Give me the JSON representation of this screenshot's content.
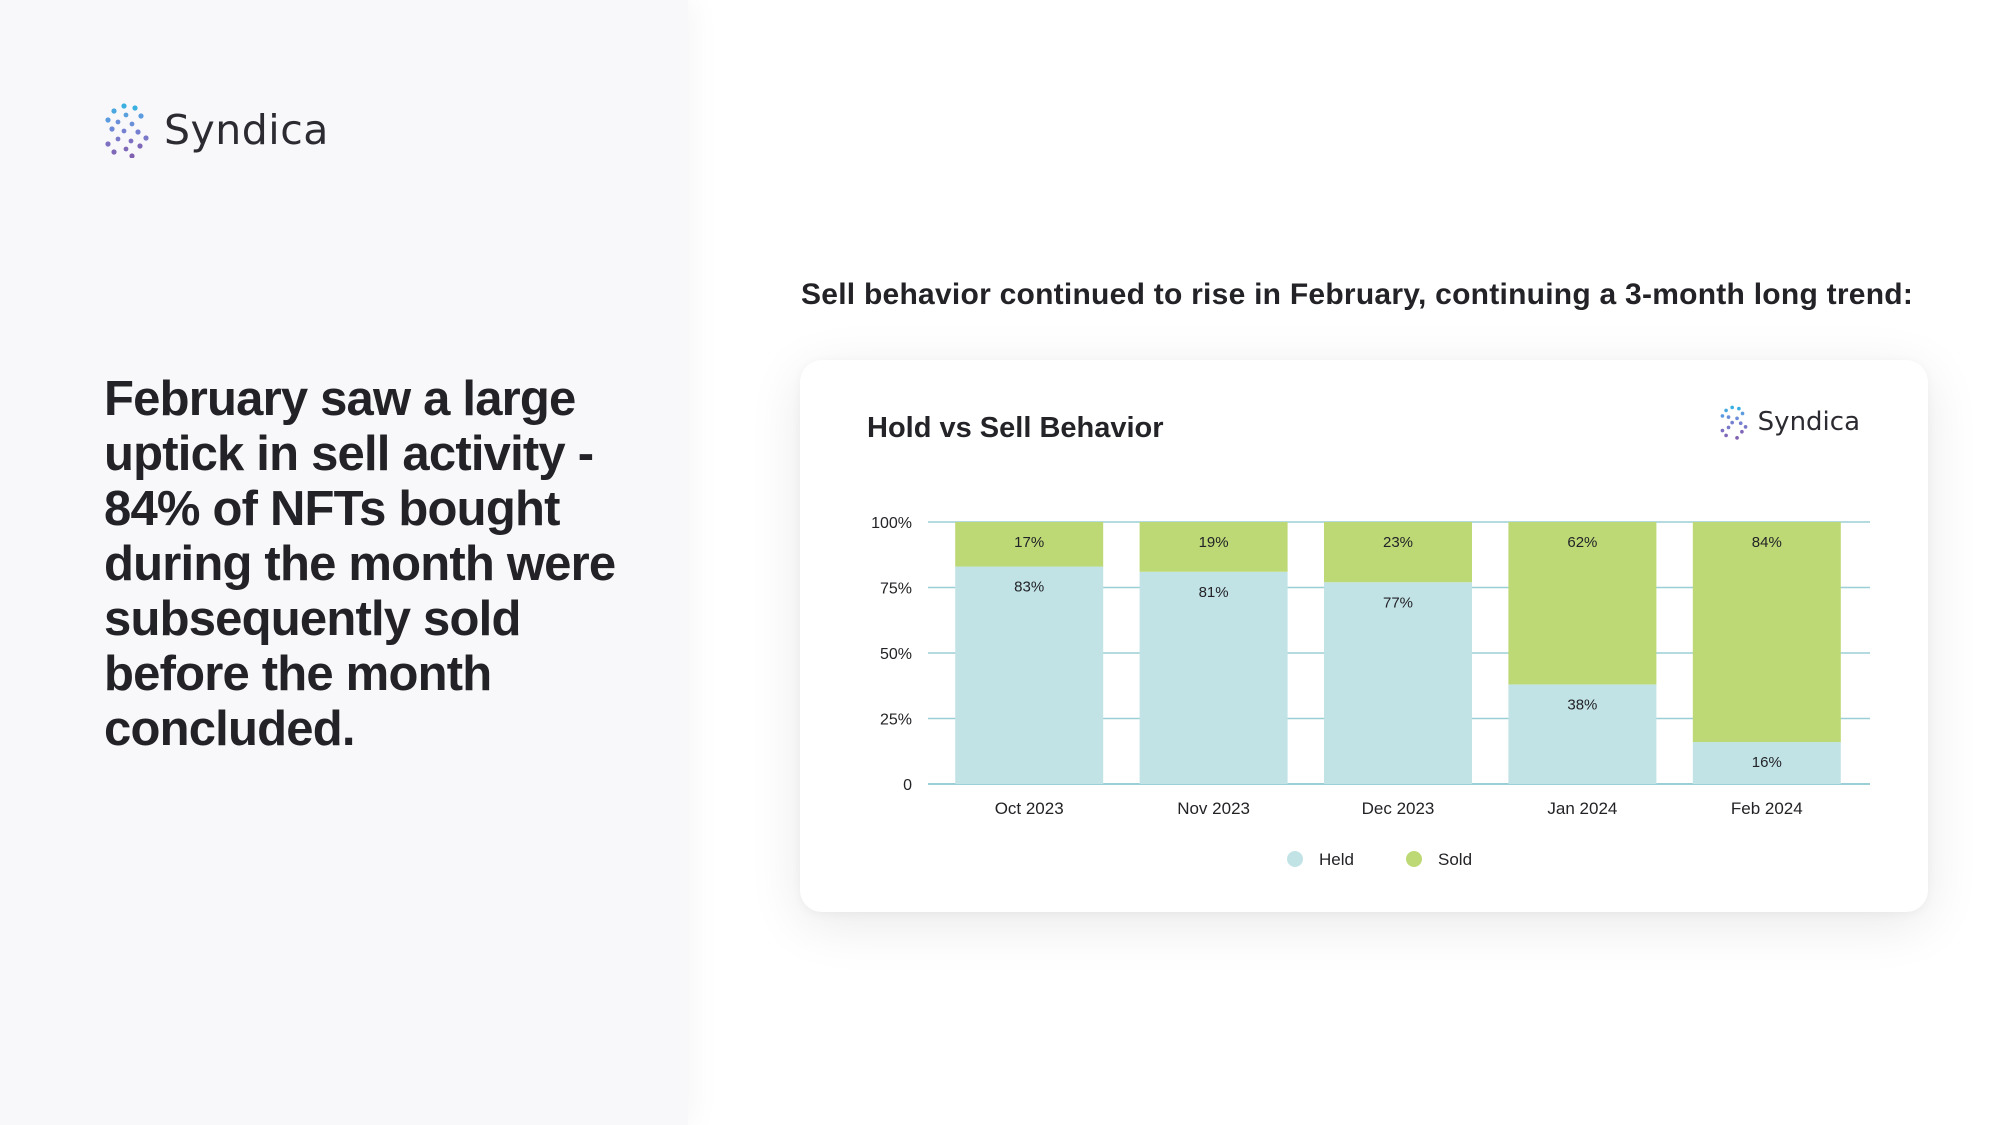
{
  "brand": {
    "name": "Syndica"
  },
  "headline": "February saw a large uptick in sell activity - 84% of NFTs bought during the month were subsequently sold before the month concluded.",
  "subtitle": "Sell behavior continued to rise in February, continuing a 3-month long trend:",
  "colors": {
    "held": "#c2e3e6",
    "sold": "#bdd975",
    "axis": "#9ccfd5",
    "text": "#232327"
  },
  "chart_data": {
    "type": "bar",
    "stacked": true,
    "title": "Hold vs Sell Behavior",
    "categories": [
      "Oct 2023",
      "Nov 2023",
      "Dec 2023",
      "Jan 2024",
      "Feb 2024"
    ],
    "series": [
      {
        "name": "Held",
        "values": [
          83,
          81,
          77,
          38,
          16
        ],
        "labels": [
          "83%",
          "81%",
          "77%",
          "38%",
          "16%"
        ]
      },
      {
        "name": "Sold",
        "values": [
          17,
          19,
          23,
          62,
          84
        ],
        "labels": [
          "17%",
          "19%",
          "23%",
          "62%",
          "84%"
        ]
      }
    ],
    "y_ticks": [
      0,
      25,
      50,
      75,
      100
    ],
    "y_tick_labels": [
      "0",
      "25%",
      "50%",
      "75%",
      "100%"
    ],
    "ylim": [
      0,
      100
    ],
    "grid": true,
    "legend_position": "bottom"
  }
}
